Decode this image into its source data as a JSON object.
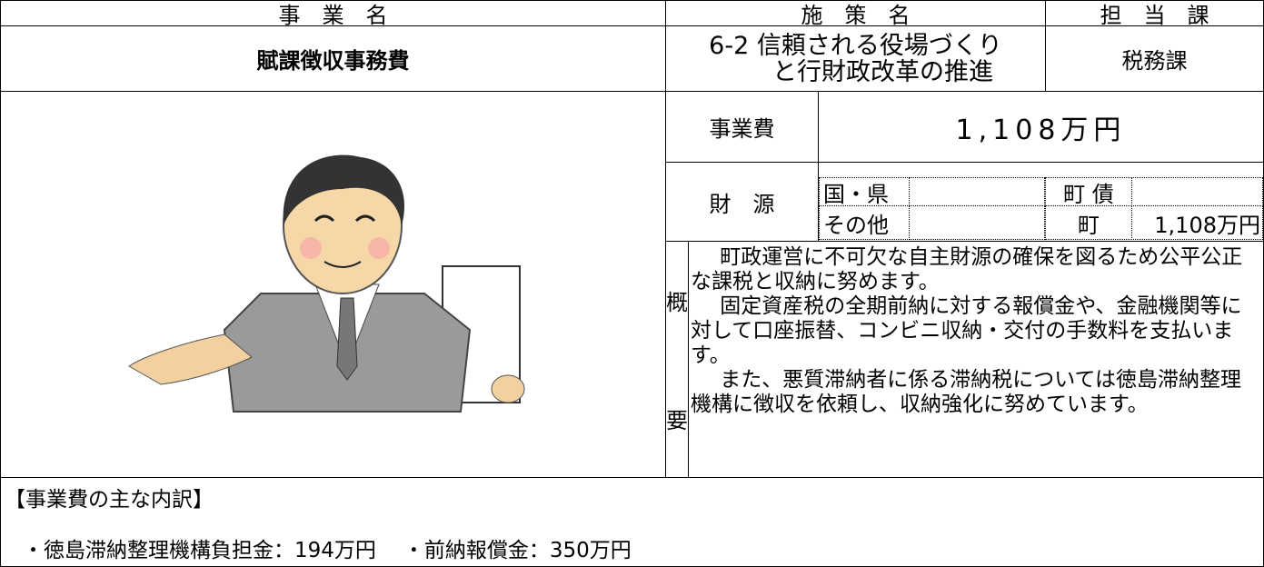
{
  "header": {
    "business_name_label": "事　業　名",
    "policy_label": "施　策　名",
    "department_label": "担　当　課"
  },
  "business_name": "賦課徴収事務費",
  "policy": [
    "6-2 信頼される役場づくり",
    "と行財政改革の推進"
  ],
  "department": "税務課",
  "cost": {
    "label": "事業費",
    "value": "1,108万円"
  },
  "funding": {
    "label": "財　源",
    "items": [
      {
        "label": "国・県"
      },
      {
        "label": "町 債"
      },
      {
        "label": "その他"
      },
      {
        "label": "町",
        "value": "1,108万円"
      }
    ]
  },
  "summary": {
    "label": [
      "概",
      "要"
    ],
    "paragraphs": [
      "町政運営に不可欠な自主財源の確保を図るため公平公正な課税と収納に努めます。",
      "固定資産税の全期前納に対する報償金や、金融機関等に対して口座振替、コンビニ収納・交付の手数料を支払います。",
      "また、悪質滞納者に係る滞納税については徳島滞納整理機構に徴収を依頼し、収納強化に努めています。"
    ]
  },
  "breakdown": {
    "title": "【事業費の主な内訳】",
    "items": [
      "・徳島滞納整理機構負担金：194万円",
      "・前納報償金：350万円"
    ]
  }
}
